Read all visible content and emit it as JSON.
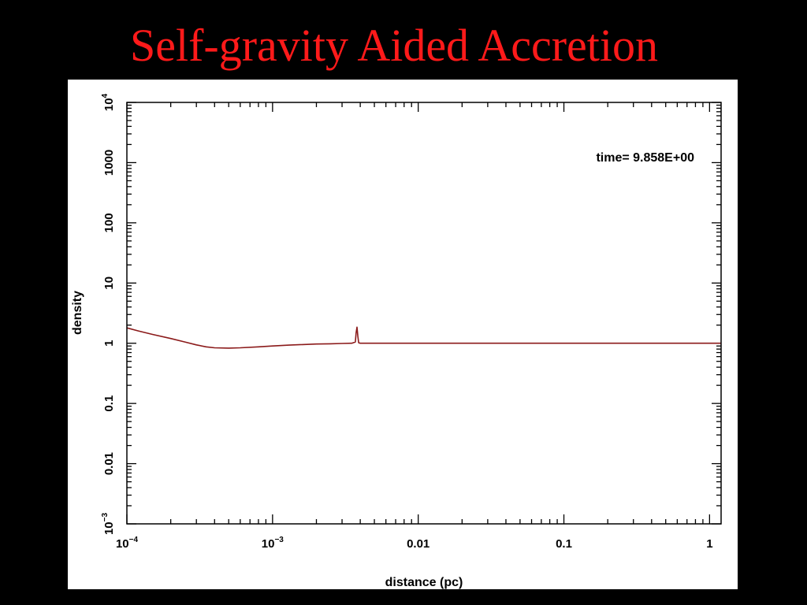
{
  "slide": {
    "title": "Self-gravity Aided Accretion",
    "title_color": "#ff1a1a",
    "background": "#000000"
  },
  "chart_data": {
    "type": "line",
    "title": "",
    "xlabel": "distance (pc)",
    "ylabel": "density",
    "x_scale": "log",
    "y_scale": "log",
    "xlim": [
      0.0001,
      1.2
    ],
    "ylim": [
      0.001,
      10000
    ],
    "grid": false,
    "annotation": "time= 9.858E+00",
    "x_ticks": [
      {
        "value": 0.0001,
        "base": "10",
        "exp": "−4",
        "label": ""
      },
      {
        "value": 0.001,
        "base": "10",
        "exp": "−3",
        "label": ""
      },
      {
        "value": 0.01,
        "base": "",
        "exp": "",
        "label": "0.01"
      },
      {
        "value": 0.1,
        "base": "",
        "exp": "",
        "label": "0.1"
      },
      {
        "value": 1,
        "base": "",
        "exp": "",
        "label": "1"
      }
    ],
    "y_ticks": [
      {
        "value": 0.001,
        "base": "10",
        "exp": "−3",
        "label": ""
      },
      {
        "value": 0.01,
        "base": "",
        "exp": "",
        "label": "0.01"
      },
      {
        "value": 0.1,
        "base": "",
        "exp": "",
        "label": "0.1"
      },
      {
        "value": 1,
        "base": "",
        "exp": "",
        "label": "1"
      },
      {
        "value": 10,
        "base": "",
        "exp": "",
        "label": "10"
      },
      {
        "value": 100,
        "base": "",
        "exp": "",
        "label": "100"
      },
      {
        "value": 1000,
        "base": "",
        "exp": "",
        "label": "1000"
      },
      {
        "value": 10000,
        "base": "10",
        "exp": "4",
        "label": ""
      }
    ],
    "series": [
      {
        "color": "#8b1a1a",
        "x": [
          0.0001,
          0.00012,
          0.00015,
          0.0002,
          0.00025,
          0.0003,
          0.00035,
          0.0004,
          0.0005,
          0.0006,
          0.0008,
          0.001,
          0.0013,
          0.0016,
          0.002,
          0.0025,
          0.003,
          0.0035,
          0.0037,
          0.00375,
          0.0038,
          0.00385,
          0.0039,
          0.004,
          0.0045,
          0.006,
          0.01,
          0.02,
          0.05,
          0.1,
          0.2,
          0.5,
          1.0,
          1.2
        ],
        "y": [
          1.8,
          1.6,
          1.4,
          1.2,
          1.05,
          0.94,
          0.87,
          0.84,
          0.83,
          0.84,
          0.87,
          0.9,
          0.93,
          0.95,
          0.97,
          0.98,
          0.99,
          1.0,
          1.05,
          1.5,
          1.85,
          1.3,
          1.02,
          1.0,
          1.0,
          1.0,
          1.0,
          1.0,
          1.0,
          1.0,
          1.0,
          1.0,
          1.0,
          1.0
        ]
      }
    ]
  }
}
